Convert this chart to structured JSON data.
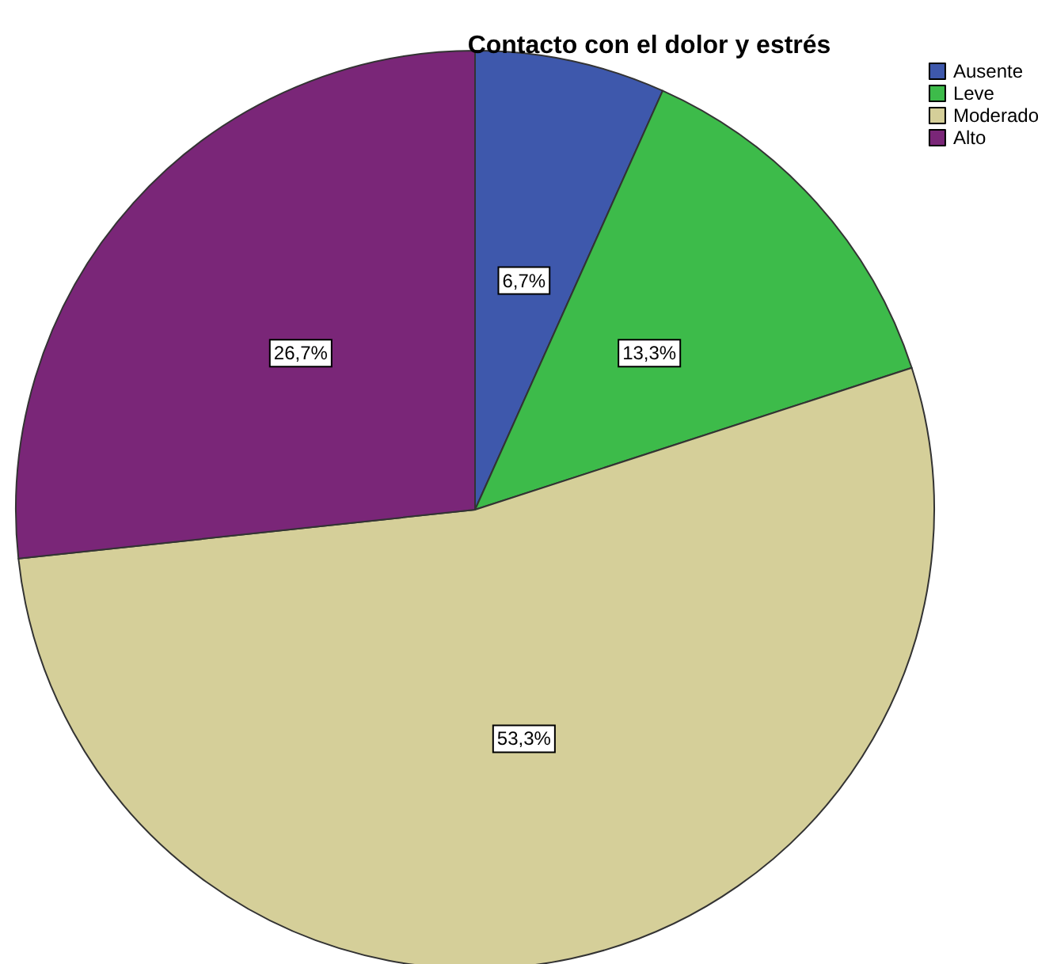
{
  "chart_data": {
    "type": "pie",
    "title": "Contacto con el dolor y estrés",
    "categories": [
      "Ausente",
      "Leve",
      "Moderado",
      "Alto"
    ],
    "values": [
      6.7,
      13.3,
      53.3,
      26.7
    ],
    "colors": [
      "#3e58ac",
      "#3dbb4a",
      "#d5cf99",
      "#7a2678"
    ],
    "value_labels": [
      "6,7%",
      "13,3%",
      "53,3%",
      "26,7%"
    ],
    "legend": "top right"
  }
}
